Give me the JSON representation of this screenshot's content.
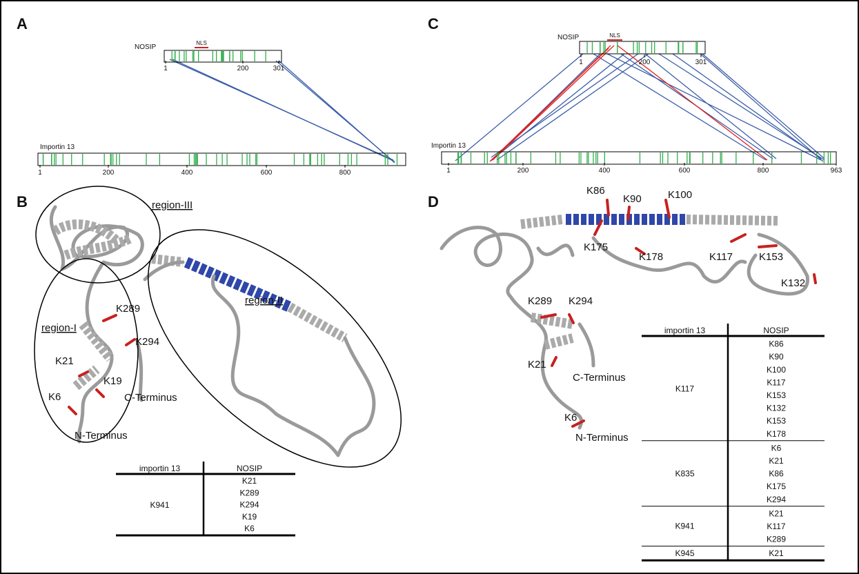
{
  "panel_labels": [
    "A",
    "B",
    "C",
    "D"
  ],
  "panel_a": {
    "protein_label": "NOSIP",
    "motif_label": "NLS",
    "protein_ticks": [
      "1",
      "200",
      "301"
    ],
    "partner_label": "Importin 13",
    "partner_ticks": [
      "1",
      "200",
      "400",
      "600",
      "800"
    ]
  },
  "panel_b": {
    "regions": [
      "region-III",
      "region-I",
      "region-II"
    ],
    "residues": [
      "K289",
      "K294",
      "K21",
      "K19",
      "K6"
    ],
    "termini": [
      "C-Terminus",
      "N-Terminus"
    ],
    "table": {
      "headers": [
        "importin 13",
        "NOSIP"
      ],
      "groups": [
        {
          "importin": "K941",
          "nosip": [
            "K21",
            "K289",
            "K294",
            "K19",
            "K6"
          ]
        }
      ]
    }
  },
  "panel_c": {
    "protein_label": "NOSIP",
    "motif_label": "NLS",
    "protein_ticks": [
      "1",
      "200",
      "301"
    ],
    "partner_label": "Importin 13",
    "partner_ticks": [
      "1",
      "200",
      "400",
      "600",
      "800",
      "963"
    ]
  },
  "panel_d": {
    "residues": [
      "K86",
      "K90",
      "K100",
      "K175",
      "K178",
      "K117",
      "K153",
      "K132",
      "K289",
      "K294",
      "K21",
      "K6"
    ],
    "termini": [
      "C-Terminus",
      "N-Terminus"
    ],
    "table": {
      "headers": [
        "importin 13",
        "NOSIP"
      ],
      "groups": [
        {
          "importin": "K117",
          "nosip": [
            "K86",
            "K90",
            "K100",
            "K117",
            "K153",
            "K132",
            "K153",
            "K178"
          ]
        },
        {
          "importin": "K835",
          "nosip": [
            "K6",
            "K21",
            "K86",
            "K175",
            "K294"
          ]
        },
        {
          "importin": "K941",
          "nosip": [
            "K21",
            "K117",
            "K289"
          ]
        },
        {
          "importin": "K945",
          "nosip": [
            "K21"
          ]
        }
      ]
    }
  }
}
